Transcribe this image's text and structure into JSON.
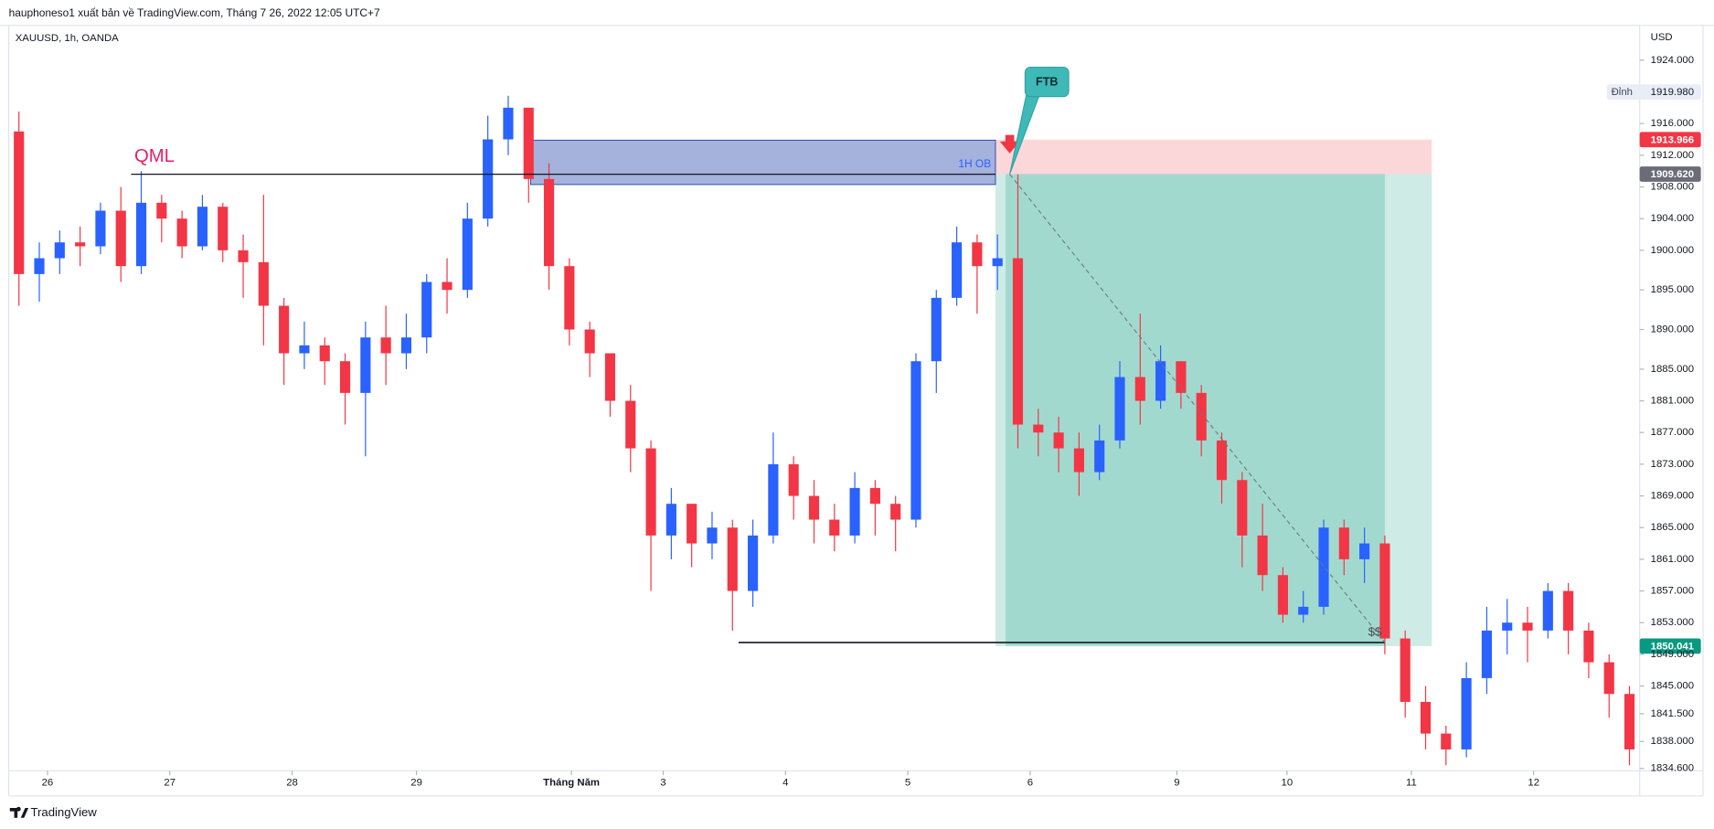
{
  "chart_data": {
    "type": "candlestick",
    "publisher": "hauphoneso1 xuất bản về TradingView.com, Tháng 7 26, 2022 12:05 UTC+7",
    "symbol": "XAUUSD, 1h, OANDA",
    "currency": "USD",
    "brand": "TradingView",
    "up_color": "#2962ff",
    "down_color": "#f23645",
    "grid": false,
    "xlim": [
      -0.5,
      79.5
    ],
    "ylim": [
      1834.3,
      1928.8
    ],
    "xticks": [
      {
        "value": 1.4,
        "label": "26"
      },
      {
        "value": 7.4,
        "label": "27"
      },
      {
        "value": 13.4,
        "label": "28"
      },
      {
        "value": 19.5,
        "label": "29"
      },
      {
        "value": 27.1,
        "label": "Tháng Năm"
      },
      {
        "value": 31.6,
        "label": "3"
      },
      {
        "value": 37.6,
        "label": "4"
      },
      {
        "value": 43.6,
        "label": "5"
      },
      {
        "value": 49.6,
        "label": "6"
      },
      {
        "value": 56.8,
        "label": "9"
      },
      {
        "value": 62.2,
        "label": "10"
      },
      {
        "value": 68.3,
        "label": "11"
      },
      {
        "value": 74.3,
        "label": "12"
      }
    ],
    "yticks": [
      {
        "value": 1924,
        "label": "1924.000"
      },
      {
        "value": 1916,
        "label": "1916.000"
      },
      {
        "value": 1912,
        "label": "1912.000"
      },
      {
        "value": 1908,
        "label": "1908.000"
      },
      {
        "value": 1904,
        "label": "1904.000"
      },
      {
        "value": 1900,
        "label": "1900.000"
      },
      {
        "value": 1895,
        "label": "1895.000"
      },
      {
        "value": 1890,
        "label": "1890.000"
      },
      {
        "value": 1885,
        "label": "1885.000"
      },
      {
        "value": 1881,
        "label": "1881.000"
      },
      {
        "value": 1877,
        "label": "1877.000"
      },
      {
        "value": 1873,
        "label": "1873.000"
      },
      {
        "value": 1869,
        "label": "1869.000"
      },
      {
        "value": 1865,
        "label": "1865.000"
      },
      {
        "value": 1861,
        "label": "1861.000"
      },
      {
        "value": 1857,
        "label": "1857.000"
      },
      {
        "value": 1853,
        "label": "1853.000"
      },
      {
        "value": 1849,
        "label": "1849.000"
      },
      {
        "value": 1845,
        "label": "1845.000"
      },
      {
        "value": 1841.5,
        "label": "1841.500"
      },
      {
        "value": 1838,
        "label": "1838.000"
      },
      {
        "value": 1834.6,
        "label": "1834.600"
      }
    ],
    "open": [
      1915,
      1897,
      1899,
      1901,
      1900.5,
      1905,
      1898,
      1906,
      1904,
      1900.5,
      1905.5,
      1900,
      1898.5,
      1893,
      1887,
      1888,
      1886,
      1882,
      1889,
      1887,
      1889,
      1896,
      1895,
      1904,
      1914,
      1918,
      1909,
      1898,
      1890,
      1887,
      1881,
      1875,
      1864,
      1868,
      1863,
      1865,
      1857,
      1864,
      1873,
      1869,
      1866,
      1864,
      1870,
      1868,
      1866,
      1886,
      1894,
      1901,
      1898,
      1899,
      1878,
      1877,
      1875,
      1872,
      1876,
      1884,
      1881,
      1886,
      1882,
      1876,
      1871,
      1864,
      1859,
      1854,
      1855,
      1865,
      1861,
      1863,
      1851,
      1843,
      1839,
      1837,
      1846,
      1852,
      1853,
      1852,
      1857,
      1852,
      1848,
      1844
    ],
    "high": [
      1917.5,
      1901,
      1902.5,
      1903,
      1906,
      1908,
      1910,
      1907,
      1905,
      1907,
      1906,
      1902,
      1907,
      1894,
      1891,
      1889,
      1887,
      1891,
      1893,
      1892,
      1897,
      1899,
      1906,
      1917,
      1919.5,
      1918,
      1911,
      1899,
      1891,
      1887,
      1883,
      1876,
      1870,
      1868,
      1867,
      1866,
      1866,
      1877,
      1874,
      1871,
      1868,
      1872,
      1871,
      1869,
      1887,
      1895,
      1903,
      1902,
      1902,
      1909.6,
      1880,
      1879,
      1877,
      1878,
      1886,
      1892,
      1888,
      1886,
      1883,
      1877,
      1872,
      1868,
      1860,
      1857,
      1866,
      1866,
      1865,
      1864,
      1852,
      1845,
      1840,
      1848,
      1855,
      1856,
      1855,
      1858,
      1858,
      1853,
      1849,
      1845
    ],
    "low": [
      1893,
      1893.5,
      1897,
      1898,
      1899.5,
      1896,
      1897,
      1901,
      1899,
      1900,
      1898.5,
      1894,
      1888,
      1883,
      1885,
      1883,
      1878,
      1874,
      1883,
      1885,
      1887,
      1892,
      1894,
      1903,
      1912,
      1906,
      1895,
      1888,
      1884,
      1879,
      1872,
      1857,
      1861,
      1860,
      1861,
      1852,
      1855,
      1863,
      1866,
      1863,
      1862,
      1863,
      1864,
      1862,
      1865,
      1882,
      1893,
      1892,
      1895,
      1875,
      1874,
      1872,
      1869,
      1871,
      1875,
      1878,
      1880,
      1880,
      1874,
      1868,
      1860,
      1857,
      1853,
      1853,
      1854,
      1859,
      1858,
      1849,
      1841,
      1837,
      1835,
      1836,
      1844,
      1849,
      1848,
      1851,
      1849,
      1846,
      1841,
      1835
    ],
    "close": [
      1897,
      1899,
      1901,
      1900.5,
      1905,
      1898,
      1906,
      1904,
      1900.5,
      1905.5,
      1900,
      1898.5,
      1893,
      1887,
      1888,
      1886,
      1882,
      1889,
      1887,
      1889,
      1896,
      1895,
      1904,
      1914,
      1918,
      1909,
      1898,
      1890,
      1887,
      1881,
      1875,
      1864,
      1868,
      1863,
      1865,
      1857,
      1864,
      1873,
      1869,
      1866,
      1864,
      1870,
      1868,
      1866,
      1886,
      1894,
      1901,
      1898,
      1899,
      1878,
      1877,
      1875,
      1872,
      1876,
      1884,
      1881,
      1886,
      1882,
      1876,
      1871,
      1864,
      1859,
      1854,
      1855,
      1865,
      1861,
      1863,
      1851,
      1843,
      1839,
      1837,
      1846,
      1852,
      1853,
      1852,
      1857,
      1852,
      1848,
      1844,
      1837
    ],
    "annotations": {
      "qml": {
        "label": "QML",
        "price": 1909.6,
        "x": [
          5.5,
          47.9
        ]
      },
      "order_block": {
        "label": "1H OB",
        "top": 1913.9,
        "bottom": 1908.3,
        "x": [
          25.1,
          47.9
        ]
      },
      "position": {
        "stop": 1913.966,
        "entry": 1909.62,
        "target": 1850.041,
        "x": [
          47.9,
          69.3
        ],
        "filled_x": [
          48.4,
          67.0
        ]
      },
      "trend": {
        "x": [
          48.6,
          67.0
        ],
        "price": [
          1909.6,
          1850.5
        ]
      },
      "liquidity": {
        "label": "$$",
        "price": 1850.5,
        "x": [
          35.3,
          67.0
        ]
      },
      "ftb": {
        "label": "FTB",
        "x": 48.6,
        "price": 1909.6
      }
    },
    "price_labels": [
      {
        "name": "Đỉnh",
        "value": 1919.98,
        "label": "1919.980",
        "color": "#e8edf6"
      },
      {
        "value": 1913.966,
        "label": "1913.966",
        "color": "#f23645"
      },
      {
        "value": 1909.62,
        "label": "1909.620",
        "color": "#6a6d78"
      },
      {
        "value": 1850.041,
        "label": "1850.041",
        "color": "#089981"
      }
    ]
  }
}
